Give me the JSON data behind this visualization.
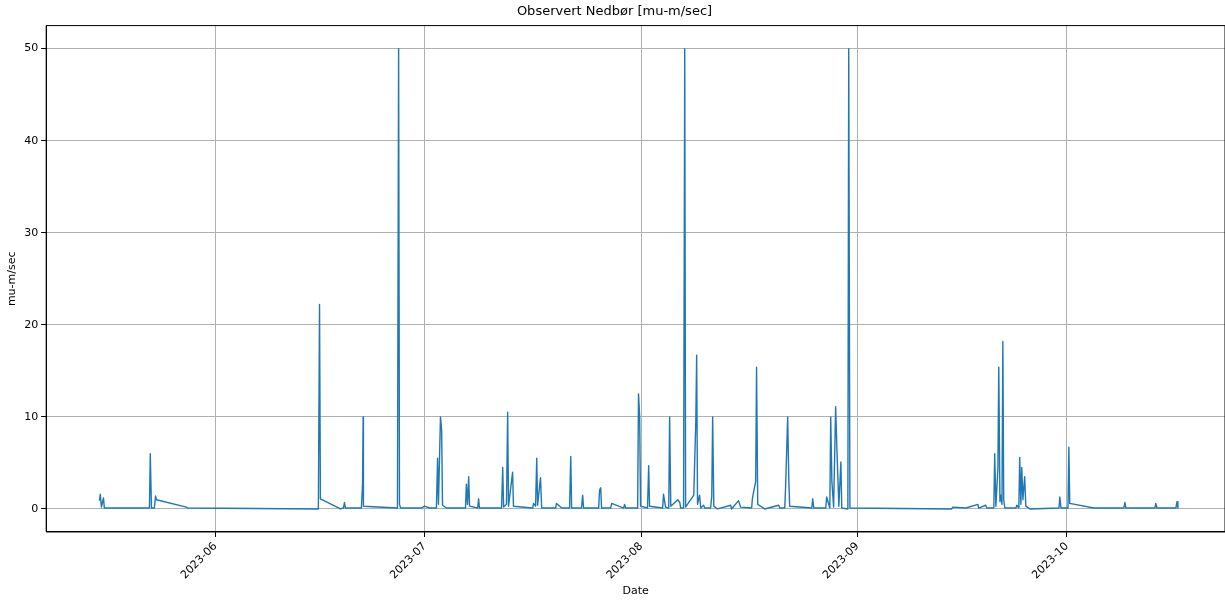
{
  "chart_data": {
    "type": "line",
    "title": "Observert Nedbør [mu-m/sec]",
    "xlabel": "Date",
    "ylabel": "mu-m/sec",
    "grid": true,
    "marker": "none",
    "line_style": "solid",
    "xlim": [
      "2023-05-07T18:00",
      "2023-10-23T16:00"
    ],
    "xticks": [
      "2023-06",
      "2023-07",
      "2023-08",
      "2023-09",
      "2023-10"
    ],
    "ylim": [
      -2.5,
      52.5
    ],
    "yticks": [
      0,
      10,
      20,
      30,
      40,
      50
    ],
    "x": [
      "2023-05-15T09:00",
      "2023-05-15T12:00",
      "2023-05-15T16:00",
      "2023-05-15T23:00",
      "2023-05-16T02:00",
      "2023-05-22T13:00",
      "2023-05-22T16:00",
      "2023-05-22T20:00",
      "2023-05-23T06:00",
      "2023-05-23T10:00",
      "2023-05-23T13:00",
      "2023-05-27T20:00",
      "2023-05-28T00:00",
      "2023-06-15T18:00",
      "2023-06-15T22:00",
      "2023-06-16T01:00",
      "2023-06-18T22:00",
      "2023-06-19T08:00",
      "2023-06-19T12:00",
      "2023-06-19T15:00",
      "2023-06-21T22:00",
      "2023-06-22T02:00",
      "2023-06-22T04:00",
      "2023-06-22T05:00",
      "2023-06-27T02:00",
      "2023-06-27T06:00",
      "2023-06-27T09:00",
      "2023-06-27T13:00",
      "2023-06-30T13:00",
      "2023-06-30T23:00",
      "2023-07-01T16:00",
      "2023-07-02T16:00",
      "2023-07-02T20:00",
      "2023-07-02T23:00",
      "2023-07-03T06:00",
      "2023-07-03T10:00",
      "2023-07-03T13:00",
      "2023-07-04T03:00",
      "2023-07-06T20:00",
      "2023-07-06T23:00",
      "2023-07-07T03:00",
      "2023-07-07T07:00",
      "2023-07-07T10:00",
      "2023-07-08T14:00",
      "2023-07-08T17:00",
      "2023-07-08T20:00",
      "2023-07-12T00:00",
      "2023-07-12T04:00",
      "2023-07-12T07:00",
      "2023-07-12T17:00",
      "2023-07-12T21:00",
      "2023-07-13T00:00",
      "2023-07-13T14:00",
      "2023-07-13T17:00",
      "2023-07-16T11:00",
      "2023-07-16T14:00",
      "2023-07-16T21:00",
      "2023-07-17T01:00",
      "2023-07-17T04:00",
      "2023-07-17T14:00",
      "2023-07-17T18:00",
      "2023-07-19T18:00",
      "2023-07-19T21:00",
      "2023-07-20T15:00",
      "2023-07-21T18:00",
      "2023-07-21T22:00",
      "2023-07-22T01:00",
      "2023-07-23T11:00",
      "2023-07-23T15:00",
      "2023-07-23T18:00",
      "2023-07-25T22:00",
      "2023-07-26T01:00",
      "2023-07-26T05:00",
      "2023-07-26T08:00",
      "2023-07-27T15:00",
      "2023-07-27T19:00",
      "2023-07-29T12:00",
      "2023-07-29T15:00",
      "2023-07-29T19:00",
      "2023-07-31T12:00",
      "2023-07-31T15:00",
      "2023-07-31T19:00",
      "2023-07-31T22:00",
      "2023-08-01T22:00",
      "2023-08-02T02:00",
      "2023-08-02T05:00",
      "2023-08-04T02:00",
      "2023-08-04T05:00",
      "2023-08-04T12:00",
      "2023-08-04T23:00",
      "2023-08-05T02:00",
      "2023-08-05T06:00",
      "2023-08-06T06:00",
      "2023-08-06T13:00",
      "2023-08-06T16:00",
      "2023-08-07T02:00",
      "2023-08-07T06:00",
      "2023-08-07T09:00",
      "2023-08-08T13:00",
      "2023-08-08T20:00",
      "2023-08-08T23:00",
      "2023-08-09T02:00",
      "2023-08-09T09:00",
      "2023-08-09T13:00",
      "2023-08-09T23:00",
      "2023-08-10T03:00",
      "2023-08-10T23:00",
      "2023-08-11T03:00",
      "2023-08-11T06:00",
      "2023-08-11T10:00",
      "2023-08-11T23:00",
      "2023-08-13T20:00",
      "2023-08-13T23:00",
      "2023-08-14T23:00",
      "2023-08-15T06:00",
      "2023-08-16T20:00",
      "2023-08-16T23:00",
      "2023-08-17T10:00",
      "2023-08-17T13:00",
      "2023-08-17T17:00",
      "2023-08-18T17:00",
      "2023-08-20T17:00",
      "2023-08-20T21:00",
      "2023-08-21T14:00",
      "2023-08-21T17:00",
      "2023-08-22T00:00",
      "2023-08-22T04:00",
      "2023-08-22T07:00",
      "2023-08-25T11:00",
      "2023-08-25T14:00",
      "2023-08-25T18:00",
      "2023-08-27T11:00",
      "2023-08-27T14:00",
      "2023-08-28T01:00",
      "2023-08-28T04:00",
      "2023-08-28T08:00",
      "2023-08-28T14:00",
      "2023-08-28T21:00",
      "2023-08-29T01:00",
      "2023-08-29T08:00",
      "2023-08-29T15:00",
      "2023-08-29T18:00",
      "2023-08-30T15:00",
      "2023-08-30T18:00",
      "2023-08-30T22:00",
      "2023-09-14T12:00",
      "2023-09-14T16:00",
      "2023-09-16T13:00",
      "2023-09-18T06:00",
      "2023-09-18T09:00",
      "2023-09-19T09:00",
      "2023-09-19T13:00",
      "2023-09-20T13:00",
      "2023-09-20T16:00",
      "2023-09-20T20:00",
      "2023-09-21T03:00",
      "2023-09-21T06:00",
      "2023-09-21T10:00",
      "2023-09-21T13:00",
      "2023-09-21T17:00",
      "2023-09-21T20:00",
      "2023-09-21T23:00",
      "2023-09-22T03:00",
      "2023-09-23T17:00",
      "2023-09-23T20:00",
      "2023-09-24T03:00",
      "2023-09-24T06:00",
      "2023-09-24T10:00",
      "2023-09-24T13:00",
      "2023-09-24T17:00",
      "2023-09-24T23:00",
      "2023-09-25T03:00",
      "2023-09-25T17:00",
      "2023-09-29T21:00",
      "2023-09-30T00:00",
      "2023-09-30T04:00",
      "2023-10-01T04:00",
      "2023-10-01T07:00",
      "2023-10-01T10:00",
      "2023-10-04T21:00",
      "2023-10-09T04:00",
      "2023-10-09T08:00",
      "2023-10-09T11:00",
      "2023-10-13T15:00",
      "2023-10-13T18:00",
      "2023-10-13T22:00",
      "2023-10-16T15:00",
      "2023-10-16T19:00",
      "2023-10-16T22:00"
    ],
    "series": [
      {
        "color": "#1f77b4",
        "values": [
          0.9,
          1.6,
          0.2,
          1.2,
          0.1,
          0.1,
          6.0,
          0.1,
          0.1,
          1.4,
          1.0,
          0.2,
          0.1,
          0.0,
          22.2,
          1.1,
          0.0,
          0.1,
          0.7,
          0.1,
          0.1,
          2.8,
          10.0,
          0.3,
          0.1,
          50,
          0.5,
          0.1,
          0.1,
          0.3,
          0.1,
          0.1,
          5.5,
          0.5,
          10.0,
          8.5,
          0.4,
          0.1,
          0.1,
          2.7,
          0.5,
          3.5,
          0.3,
          0.1,
          1.1,
          0.1,
          0.1,
          4.5,
          0.2,
          0.5,
          10.5,
          0.3,
          4.0,
          0.3,
          0.1,
          0.6,
          0.3,
          5.5,
          0.4,
          3.4,
          0.1,
          0.1,
          0.6,
          0.1,
          0.1,
          5.7,
          0.1,
          0.1,
          1.5,
          0.1,
          0.1,
          2.0,
          2.3,
          0.1,
          0.1,
          0.6,
          0.1,
          0.5,
          0.1,
          0.1,
          12.5,
          10.0,
          0.3,
          0.1,
          4.7,
          0.3,
          0.1,
          1.6,
          0.2,
          0.1,
          10.0,
          0.3,
          1.0,
          0.7,
          0.1,
          0.1,
          50,
          0.2,
          1.5,
          9.4,
          16.7,
          0.5,
          1.5,
          0.1,
          0.4,
          0.1,
          0.1,
          1.4,
          10.0,
          0.3,
          0.0,
          0.4,
          0.0,
          0.9,
          0.2,
          0.1,
          1.2,
          3.0,
          15.4,
          0.5,
          0.0,
          0.4,
          0.1,
          0.1,
          2.5,
          10.0,
          3.0,
          0.3,
          0.1,
          1.1,
          0.1,
          0.1,
          1.3,
          0.1,
          10.0,
          3.0,
          0.2,
          11.1,
          6.8,
          0.3,
          5.1,
          0.1,
          0.0,
          50,
          0.1,
          0.0,
          0.2,
          0.1,
          0.5,
          0.1,
          0.4,
          0.1,
          0.1,
          6.0,
          0.3,
          4.4,
          15.4,
          0.8,
          1.5,
          0.5,
          18.2,
          1.0,
          0.1,
          0.1,
          0.4,
          0.1,
          5.6,
          0.5,
          4.5,
          1.0,
          3.5,
          0.3,
          0.0,
          0.1,
          1.3,
          0.1,
          0.1,
          6.7,
          0.6,
          0.1,
          0.1,
          0.7,
          0.1,
          0.1,
          0.6,
          0.1,
          0.1,
          0.8,
          0.1
        ]
      }
    ]
  }
}
